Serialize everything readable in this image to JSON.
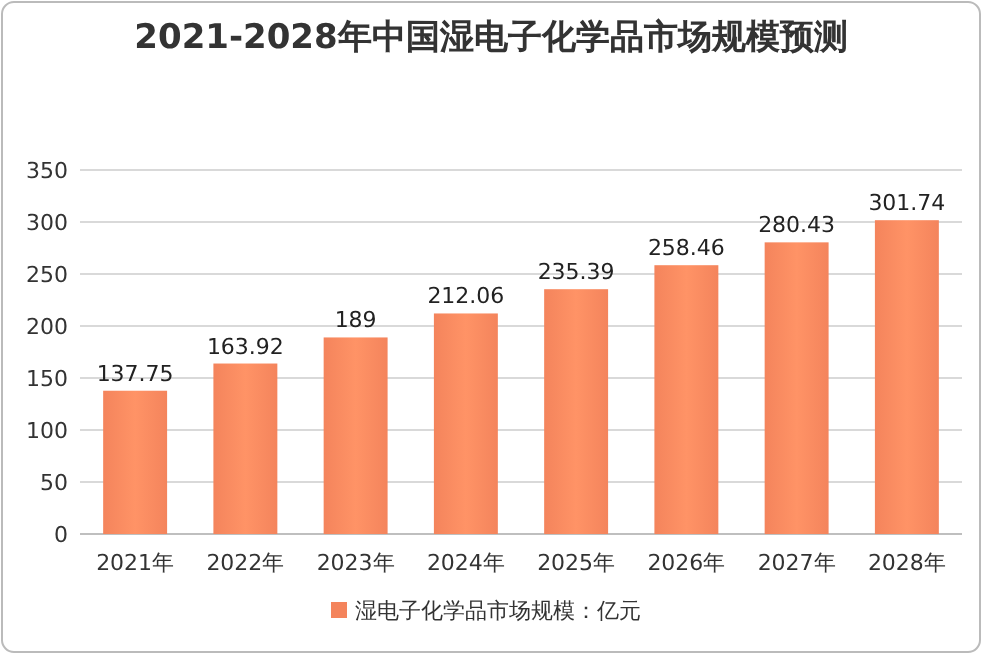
{
  "chart_data": {
    "type": "bar",
    "title": "2021-2028年中国湿电子化学品市场规模预测",
    "categories": [
      "2021年",
      "2022年",
      "2023年",
      "2024年",
      "2025年",
      "2026年",
      "2027年",
      "2028年"
    ],
    "series": [
      {
        "name": "湿电子化学品市场规模：亿元",
        "color": "#f4845c",
        "values": [
          137.75,
          163.92,
          189,
          212.06,
          235.39,
          258.46,
          280.43,
          301.74
        ]
      }
    ],
    "ylim": [
      0,
      350
    ],
    "yticks": [
      0,
      50,
      100,
      150,
      200,
      250,
      300,
      350
    ],
    "grid": "y",
    "legend": "bottom",
    "data_labels": true
  }
}
